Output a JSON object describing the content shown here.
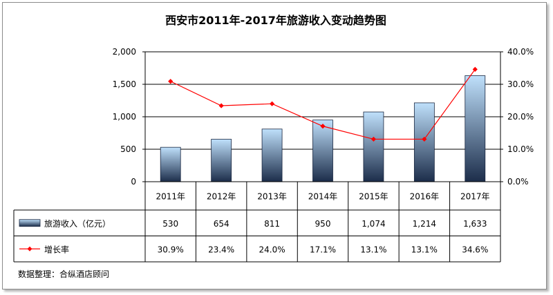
{
  "chart_data": {
    "type": "bar",
    "title": "西安市2011年-2017年旅游收入变动趋势图",
    "categories": [
      "2011年",
      "2012年",
      "2013年",
      "2014年",
      "2015年",
      "2016年",
      "2017年"
    ],
    "series": [
      {
        "name": "旅游收入（亿元）",
        "type": "bar",
        "axis": "left",
        "values": [
          530,
          654,
          811,
          950,
          1074,
          1214,
          1633
        ],
        "labels": [
          "530",
          "654",
          "811",
          "950",
          "1,074",
          "1,214",
          "1,633"
        ]
      },
      {
        "name": "增长率",
        "type": "line",
        "axis": "right",
        "values": [
          30.9,
          23.4,
          24.0,
          17.1,
          13.1,
          13.1,
          34.6
        ],
        "labels": [
          "30.9%",
          "23.4%",
          "24.0%",
          "17.1%",
          "13.1%",
          "13.1%",
          "34.6%"
        ]
      }
    ],
    "y_left": {
      "ylim": [
        0,
        2000
      ],
      "ticks": [
        "0",
        "500",
        "1,000",
        "1,500",
        "2,000"
      ]
    },
    "y_right": {
      "ylim": [
        0,
        40
      ],
      "ticks": [
        "0.0%",
        "10.0%",
        "20.0%",
        "30.0%",
        "40.0%"
      ]
    },
    "grid": true,
    "legend": "data-table",
    "source": "数据整理：合纵酒店顾问"
  },
  "colors": {
    "bar_top": "#bfe0fb",
    "bar_bottom": "#1c2d4a",
    "line": "#ff0000",
    "grid": "#000000"
  }
}
